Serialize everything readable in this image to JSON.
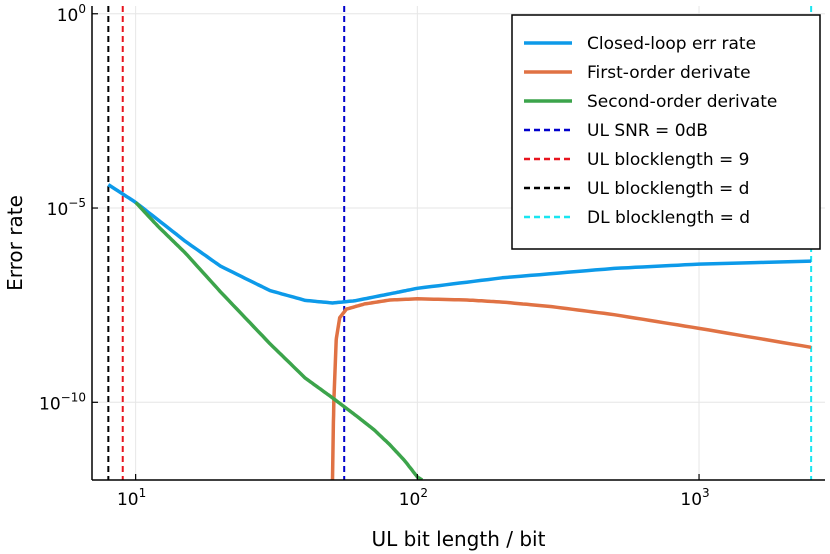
{
  "chart_data": {
    "type": "line",
    "xlabel": "UL bit length / bit",
    "ylabel": "Error rate",
    "x_scale": "log10",
    "y_scale": "log10",
    "xlim": [
      7,
      2800
    ],
    "ylim": [
      1e-12,
      1.0
    ],
    "grid": true,
    "legend_position": "top-right",
    "x_ticks": [
      {
        "value": 10,
        "base": "10",
        "exp": "1"
      },
      {
        "value": 100,
        "base": "10",
        "exp": "2"
      },
      {
        "value": 1000,
        "base": "10",
        "exp": "3"
      }
    ],
    "y_ticks": [
      {
        "value": 1,
        "base": "10",
        "exp": "0"
      },
      {
        "value": 1e-05,
        "base": "10",
        "exp": "−5"
      },
      {
        "value": 1e-10,
        "base": "10",
        "exp": "−10"
      }
    ],
    "series": [
      {
        "name": "Closed-loop err rate",
        "color": "#0d9ae9",
        "style": "solid",
        "points": [
          [
            8,
            4e-05
          ],
          [
            10,
            1.4e-05
          ],
          [
            15,
            1.4e-06
          ],
          [
            20,
            3.2e-07
          ],
          [
            30,
            7.5e-08
          ],
          [
            40,
            4.2e-08
          ],
          [
            50,
            3.6e-08
          ],
          [
            60,
            4.1e-08
          ],
          [
            80,
            6.2e-08
          ],
          [
            100,
            8.6e-08
          ],
          [
            200,
            1.6e-07
          ],
          [
            500,
            2.8e-07
          ],
          [
            1000,
            3.6e-07
          ],
          [
            2500,
            4.3e-07
          ]
        ]
      },
      {
        "name": "First-order derivate",
        "color": "#e07244",
        "style": "solid",
        "points": [
          [
            50,
            1e-12
          ],
          [
            50.5,
            1e-10
          ],
          [
            51.5,
            4e-09
          ],
          [
            53,
            1.5e-08
          ],
          [
            56,
            2.5e-08
          ],
          [
            65,
            3.4e-08
          ],
          [
            80,
            4.3e-08
          ],
          [
            100,
            4.6e-08
          ],
          [
            150,
            4.3e-08
          ],
          [
            200,
            3.8e-08
          ],
          [
            300,
            2.9e-08
          ],
          [
            500,
            1.8e-08
          ],
          [
            1000,
            8e-09
          ],
          [
            2500,
            2.6e-09
          ]
        ]
      },
      {
        "name": "Second-order derivate",
        "color": "#3ca44b",
        "style": "solid",
        "points": [
          [
            10,
            1.4e-05
          ],
          [
            12,
            3.4e-06
          ],
          [
            15,
            7e-07
          ],
          [
            20,
            7e-08
          ],
          [
            30,
            3.2e-09
          ],
          [
            40,
            4.2e-10
          ],
          [
            50,
            1.3e-10
          ],
          [
            60,
            4.8e-11
          ],
          [
            70,
            2e-11
          ],
          [
            80,
            8e-12
          ],
          [
            90,
            3.2e-12
          ],
          [
            100,
            1.2e-12
          ],
          [
            104,
            1e-12
          ]
        ]
      },
      {
        "name": "UL SNR = 0dB",
        "color": "#0000cc",
        "style": "dashed",
        "vline": 55
      },
      {
        "name": "UL blocklength = 9",
        "color": "#e8141e",
        "style": "dashed",
        "vline": 9
      },
      {
        "name": "UL blocklength = d",
        "color": "#000000",
        "style": "dashed",
        "vline": 8
      },
      {
        "name": "DL blocklength = d",
        "color": "#19e6f0",
        "style": "dashed",
        "vline": 2500
      }
    ]
  }
}
